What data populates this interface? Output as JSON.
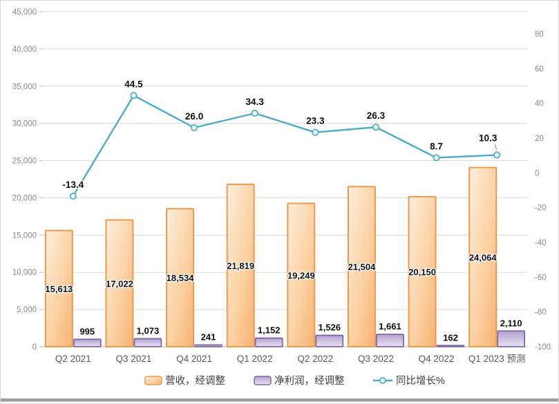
{
  "chart_data": {
    "type": "combo",
    "title": "",
    "categories": [
      "Q2 2021",
      "Q3 2021",
      "Q4 2021",
      "Q1 2022",
      "Q2 2022",
      "Q3 2022",
      "Q4 2022",
      "Q1 2023 预测"
    ],
    "series": [
      {
        "name": "营收，经调整",
        "chart_type": "bar",
        "axis": "left",
        "values": [
          15613,
          17022,
          18534,
          21819,
          19249,
          21504,
          20150,
          24064
        ],
        "data_labels": [
          "15,613",
          "17,022",
          "18,534",
          "21,819",
          "19,249",
          "21,504",
          "20,150",
          "24,064"
        ],
        "label_position": "center"
      },
      {
        "name": "净利润，经调整",
        "chart_type": "bar",
        "axis": "left",
        "values": [
          995,
          1073,
          241,
          1152,
          1526,
          1661,
          162,
          2110
        ],
        "data_labels": [
          "995",
          "1,073",
          "241",
          "1,152",
          "1,526",
          "1,661",
          "162",
          "2,110"
        ],
        "label_position": "outside-end"
      },
      {
        "name": "同比增长%",
        "chart_type": "line",
        "axis": "right",
        "values": [
          -13.4,
          44.5,
          26.0,
          34.3,
          23.3,
          26.3,
          8.7,
          10.3
        ],
        "data_labels": [
          "-13.4",
          "44.5",
          "26.0",
          "34.3",
          "23.3",
          "26.3",
          "8.7",
          "10.3"
        ],
        "label_position": "above"
      }
    ],
    "left_axis": {
      "min": 0,
      "max": 45000,
      "step": 5000,
      "tick_values": [
        0,
        5000,
        10000,
        15000,
        20000,
        25000,
        30000,
        35000,
        40000,
        45000
      ],
      "tick_labels": [
        "0",
        "5,000",
        "10,000",
        "15,000",
        "20,000",
        "25,000",
        "30,000",
        "35,000",
        "40,000",
        "45,000"
      ]
    },
    "right_axis": {
      "min": -100,
      "max": 80,
      "step": 20,
      "tick_values": [
        -100,
        -80,
        -60,
        -40,
        -20,
        0,
        20,
        40,
        60,
        80
      ],
      "tick_labels": [
        "-100",
        "-80",
        "-60",
        "-40",
        "-20",
        "0",
        "20",
        "40",
        "60",
        "80"
      ]
    },
    "legend_position": "bottom",
    "grid": true
  },
  "colors": {
    "revenue_fill_light": "#fdeedd",
    "revenue_fill_mid": "#fbd2a4",
    "revenue_fill_dark": "#f8b272",
    "revenue_border": "#ee9a4d",
    "profit_fill_dark": "#b3a1cf",
    "profit_fill_light": "#e9e4f4",
    "profit_border": "#7d68a5",
    "line": "#4bacca",
    "marker_fill": "#edf7fb",
    "grid": "#dadada",
    "axis_line": "#bfbfbf",
    "axis_text": "#8a8a8a",
    "category_text": "#595959",
    "legend_text": "#404040",
    "leader_line": "#9e9e9e",
    "frame_border": "#d7d7d7",
    "bottom_bar": "#9d9d9d",
    "background": "#ffffff"
  }
}
